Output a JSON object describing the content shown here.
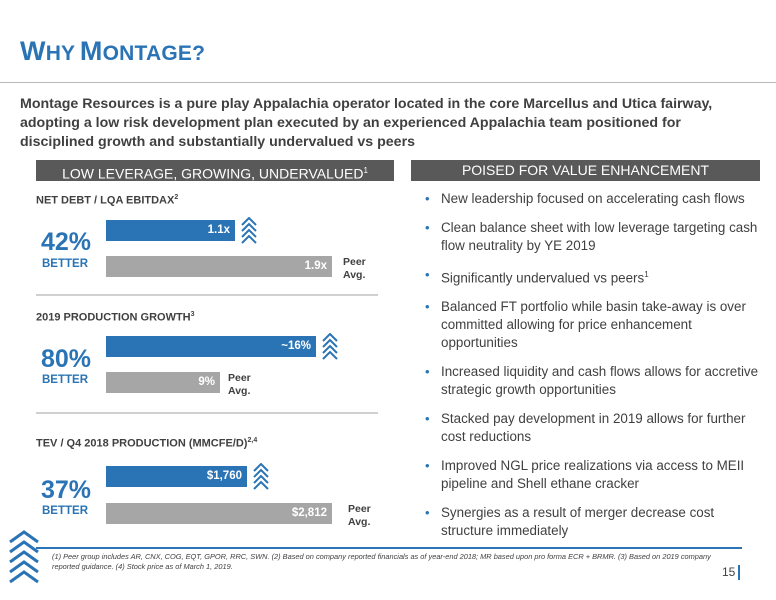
{
  "header": {
    "title_first_initial": "W",
    "title_first_rest": "HY",
    "title_second_initial": "M",
    "title_second_rest": "ONTAGE?"
  },
  "subtitle": "Montage Resources is a pure play Appalachia operator located in the core Marcellus and Utica fairway, adopting a low risk development plan executed by an experienced Appalachia team positioned for disciplined growth and substantially undervalued vs peers",
  "left_banner": {
    "text": "LOW LEVERAGE, GROWING, UNDERVALUED",
    "sup": "1"
  },
  "right_banner": {
    "text": "POISED FOR VALUE ENHANCEMENT"
  },
  "metrics": [
    {
      "label": "NET DEBT / LQA EBITDAX",
      "label_sup": "2",
      "pct": "42%",
      "better": "BETTER",
      "montage_value": "1.1x",
      "peer_value": "1.9x",
      "peer_label_line1": "Peer",
      "peer_label_line2": "Avg."
    },
    {
      "label": "2019 PRODUCTION GROWTH",
      "label_sup": "3",
      "pct": "80%",
      "better": "BETTER",
      "montage_value": "~16%",
      "peer_value": "9%",
      "peer_label_line1": "Peer",
      "peer_label_line2": "Avg."
    },
    {
      "label": "TEV / Q4 2018 PRODUCTION (MMCFE/D)",
      "label_sup": "2,4",
      "pct": "37%",
      "better": "BETTER",
      "montage_value": "$1,760",
      "peer_value": "$2,812",
      "peer_label_line1": "Peer",
      "peer_label_line2": "Avg."
    }
  ],
  "bullets": [
    {
      "text": "New leadership focused on accelerating cash flows"
    },
    {
      "text": "Clean balance sheet with low leverage targeting cash flow neutrality by YE 2019"
    },
    {
      "text": "Significantly undervalued vs peers",
      "sup": "1"
    },
    {
      "text": "Balanced FT portfolio while basin take-away is over committed allowing for price enhancement opportunities"
    },
    {
      "text": "Increased liquidity and cash flows allows for accretive strategic growth opportunities"
    },
    {
      "text": "Stacked pay development in 2019 allows for further cost reductions"
    },
    {
      "text": "Improved NGL price realizations via access to MEII pipeline and Shell ethane cracker"
    },
    {
      "text": "Synergies as a result of merger decrease cost structure immediately"
    }
  ],
  "footnote": "(1) Peer group includes AR, CNX, COG, EQT, GPOR, RRC, SWN.  (2) Based on company reported financials as of year-end 2018; MR based upon pro forma ECR + BRMR.  (3) Based on 2019 company reported guidance.  (4) Stock price as of March 1, 2019.",
  "page_number": "15",
  "colors": {
    "brand_blue": "#2a74b5",
    "peer_grey": "#a6a6a6",
    "banner_grey": "#595959"
  },
  "icons": [
    "montage-logo-icon",
    "bullet-dot-icon"
  ]
}
